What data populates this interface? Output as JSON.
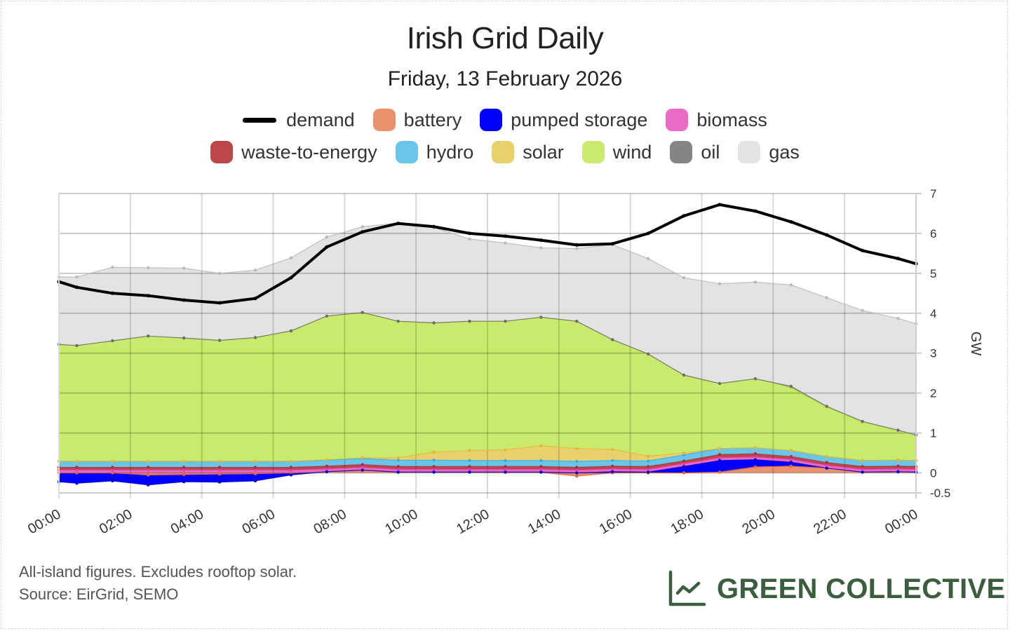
{
  "header": {
    "title": "Irish Grid Daily",
    "subtitle": "Friday, 13 February 2026"
  },
  "legend": [
    {
      "key": "demand",
      "label": "demand",
      "type": "line",
      "color": "#000000"
    },
    {
      "key": "battery",
      "label": "battery",
      "color": "#ec916d"
    },
    {
      "key": "pumped",
      "label": "pumped storage",
      "color": "#0000ff"
    },
    {
      "key": "biomass",
      "label": "biomass",
      "color": "#ea6ac6"
    },
    {
      "key": "waste",
      "label": "waste-to-energy",
      "color": "#bc4649"
    },
    {
      "key": "hydro",
      "label": "hydro",
      "color": "#6ac5ea"
    },
    {
      "key": "solar",
      "label": "solar",
      "color": "#e9d06d"
    },
    {
      "key": "wind",
      "label": "wind",
      "color": "#c9ea6d"
    },
    {
      "key": "oil",
      "label": "oil",
      "color": "#858585"
    },
    {
      "key": "gas",
      "label": "gas",
      "color": "#e3e3e3"
    }
  ],
  "footer": {
    "note": "All-island figures. Excludes rooftop solar.",
    "source": "Source: EirGrid, SEMO"
  },
  "brand": {
    "name": "GREEN COLLECTIVE",
    "icon": "line-chart-icon",
    "color": "#3b5e3f"
  },
  "chart_data": {
    "type": "area",
    "title": "Irish Grid Daily",
    "subtitle": "Friday, 13 February 2026",
    "xlabel": "",
    "ylabel": "GW",
    "ylim": [
      -0.5,
      7
    ],
    "yticks": [
      -0.5,
      0,
      1,
      2,
      3,
      4,
      5,
      6,
      7
    ],
    "xlim": [
      0,
      24
    ],
    "xtick_labels": [
      "00:00",
      "02:00",
      "04:00",
      "06:00",
      "08:00",
      "10:00",
      "12:00",
      "14:00",
      "16:00",
      "18:00",
      "20:00",
      "22:00",
      "00:00"
    ],
    "x_hours": [
      0,
      0.5,
      1.5,
      2.5,
      3.5,
      4.5,
      5.5,
      6.5,
      7.5,
      8.5,
      9.5,
      10.5,
      11.5,
      12.5,
      13.5,
      14.5,
      15.5,
      16.5,
      17.5,
      18.5,
      19.5,
      20.5,
      21.5,
      22.5,
      23.5,
      24
    ],
    "grid": true,
    "legend_position": "top",
    "stack_order": [
      "battery",
      "pumped",
      "biomass",
      "waste",
      "hydro",
      "solar",
      "wind",
      "oil",
      "gas"
    ],
    "series": [
      {
        "name": "battery",
        "values": [
          0.0,
          0.0,
          0.0,
          -0.05,
          -0.04,
          -0.03,
          -0.02,
          0.0,
          0.03,
          0.07,
          0.02,
          0.02,
          0.02,
          0.02,
          0.02,
          -0.08,
          0.0,
          0.0,
          0.0,
          0.02,
          0.15,
          0.17,
          0.12,
          0.02,
          0.03,
          0.02
        ]
      },
      {
        "name": "pumped storage",
        "values": [
          -0.22,
          -0.26,
          -0.2,
          -0.25,
          -0.18,
          -0.2,
          -0.18,
          -0.05,
          0.0,
          0.0,
          0.0,
          0.0,
          0.0,
          0.0,
          0.0,
          0.0,
          0.03,
          0.02,
          0.16,
          0.29,
          0.18,
          0.1,
          0.0,
          0.0,
          0.0,
          0.0
        ]
      },
      {
        "name": "biomass",
        "values": [
          0.07,
          0.07,
          0.07,
          0.07,
          0.07,
          0.07,
          0.07,
          0.07,
          0.07,
          0.07,
          0.07,
          0.07,
          0.07,
          0.07,
          0.07,
          0.07,
          0.07,
          0.07,
          0.07,
          0.07,
          0.07,
          0.07,
          0.07,
          0.07,
          0.07,
          0.07
        ]
      },
      {
        "name": "waste-to-energy",
        "values": [
          0.07,
          0.07,
          0.07,
          0.07,
          0.07,
          0.07,
          0.07,
          0.07,
          0.07,
          0.07,
          0.07,
          0.07,
          0.07,
          0.07,
          0.07,
          0.07,
          0.07,
          0.07,
          0.07,
          0.08,
          0.08,
          0.07,
          0.07,
          0.07,
          0.07,
          0.07
        ]
      },
      {
        "name": "hydro",
        "values": [
          0.15,
          0.15,
          0.15,
          0.15,
          0.15,
          0.15,
          0.15,
          0.15,
          0.15,
          0.15,
          0.16,
          0.16,
          0.15,
          0.15,
          0.15,
          0.15,
          0.14,
          0.14,
          0.15,
          0.15,
          0.15,
          0.15,
          0.15,
          0.15,
          0.15,
          0.15
        ]
      },
      {
        "name": "solar",
        "values": [
          0,
          0,
          0,
          0,
          0,
          0,
          0,
          0,
          0.01,
          0.02,
          0.06,
          0.2,
          0.25,
          0.27,
          0.37,
          0.32,
          0.28,
          0.12,
          0.05,
          0,
          0,
          0,
          0,
          0,
          0,
          0
        ]
      },
      {
        "name": "wind",
        "values": [
          2.93,
          2.9,
          3.02,
          3.14,
          3.09,
          3.03,
          3.1,
          3.27,
          3.6,
          3.64,
          3.42,
          3.24,
          3.24,
          3.22,
          3.22,
          3.19,
          2.75,
          2.56,
          1.95,
          1.63,
          1.73,
          1.58,
          1.24,
          0.97,
          0.74,
          0.64
        ]
      },
      {
        "name": "oil",
        "values": [
          0,
          0,
          0,
          0,
          0,
          0,
          0,
          0,
          0,
          0,
          0,
          0,
          0,
          0,
          0,
          0,
          0,
          0,
          0,
          0,
          0,
          0.03,
          0.02,
          0.01,
          0.01,
          0
        ]
      },
      {
        "name": "gas",
        "values": [
          1.69,
          1.72,
          1.84,
          1.71,
          1.75,
          1.68,
          1.69,
          1.83,
          1.98,
          2.15,
          2.46,
          2.39,
          2.06,
          1.96,
          1.74,
          1.82,
          2.38,
          2.39,
          2.44,
          2.5,
          2.42,
          2.54,
          2.72,
          2.78,
          2.8,
          2.79
        ]
      },
      {
        "name": "demand",
        "type": "line",
        "values": [
          4.79,
          4.65,
          4.5,
          4.44,
          4.33,
          4.26,
          4.37,
          4.89,
          5.66,
          6.04,
          6.25,
          6.17,
          6.0,
          5.93,
          5.83,
          5.71,
          5.74,
          6.0,
          6.44,
          6.72,
          6.56,
          6.29,
          5.96,
          5.57,
          5.37,
          5.24
        ]
      }
    ]
  }
}
